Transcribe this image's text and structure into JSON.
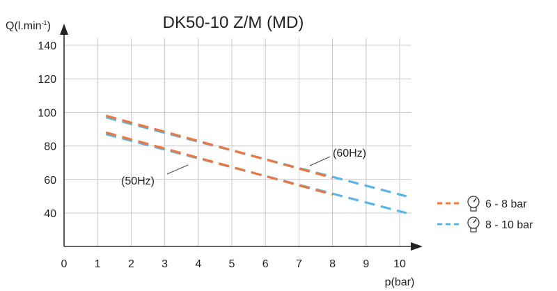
{
  "chart_data": {
    "type": "line",
    "title": "DK50-10 Z/M (MD)",
    "xlabel": "p(bar)",
    "ylabel": "Q(l.min",
    "ylabel_sup": "-1",
    "ylabel_close": ")",
    "xlim": [
      0,
      10
    ],
    "ylim": [
      20,
      140
    ],
    "xticks": [
      "0",
      "1",
      "2",
      "3",
      "4",
      "5",
      "6",
      "7",
      "8",
      "9",
      "10"
    ],
    "yticks": [
      "40",
      "60",
      "80",
      "100",
      "120",
      "140"
    ],
    "ytick_values": [
      40,
      60,
      80,
      100,
      120,
      140
    ],
    "grid": true,
    "series": [
      {
        "name": "6 - 8 bar (60Hz)",
        "color": "#ee7640",
        "x": [
          1.25,
          8
        ],
        "y": [
          98,
          61
        ]
      },
      {
        "name": "8 - 10 bar (60Hz)",
        "color": "#5ab4e6",
        "x": [
          1.25,
          10.2
        ],
        "y": [
          97,
          50
        ]
      },
      {
        "name": "6 - 8 bar (50Hz)",
        "color": "#ee7640",
        "x": [
          1.25,
          8
        ],
        "y": [
          88,
          51
        ]
      },
      {
        "name": "8 - 10 bar (50Hz)",
        "color": "#5ab4e6",
        "x": [
          1.25,
          10.2
        ],
        "y": [
          87,
          40
        ]
      }
    ],
    "annotations": [
      {
        "text": "(60Hz)",
        "x": 8.8,
        "y": 68
      },
      {
        "text": "(50Hz)",
        "x": 2.35,
        "y": 60
      }
    ],
    "legend": {
      "placement": "right",
      "items": [
        {
          "label": "6 - 8 bar",
          "color": "#ee7640",
          "icon": "pressure-gauge-icon"
        },
        {
          "label": "8 - 10 bar",
          "color": "#5ab4e6",
          "icon": "pressure-gauge-icon"
        }
      ]
    }
  }
}
